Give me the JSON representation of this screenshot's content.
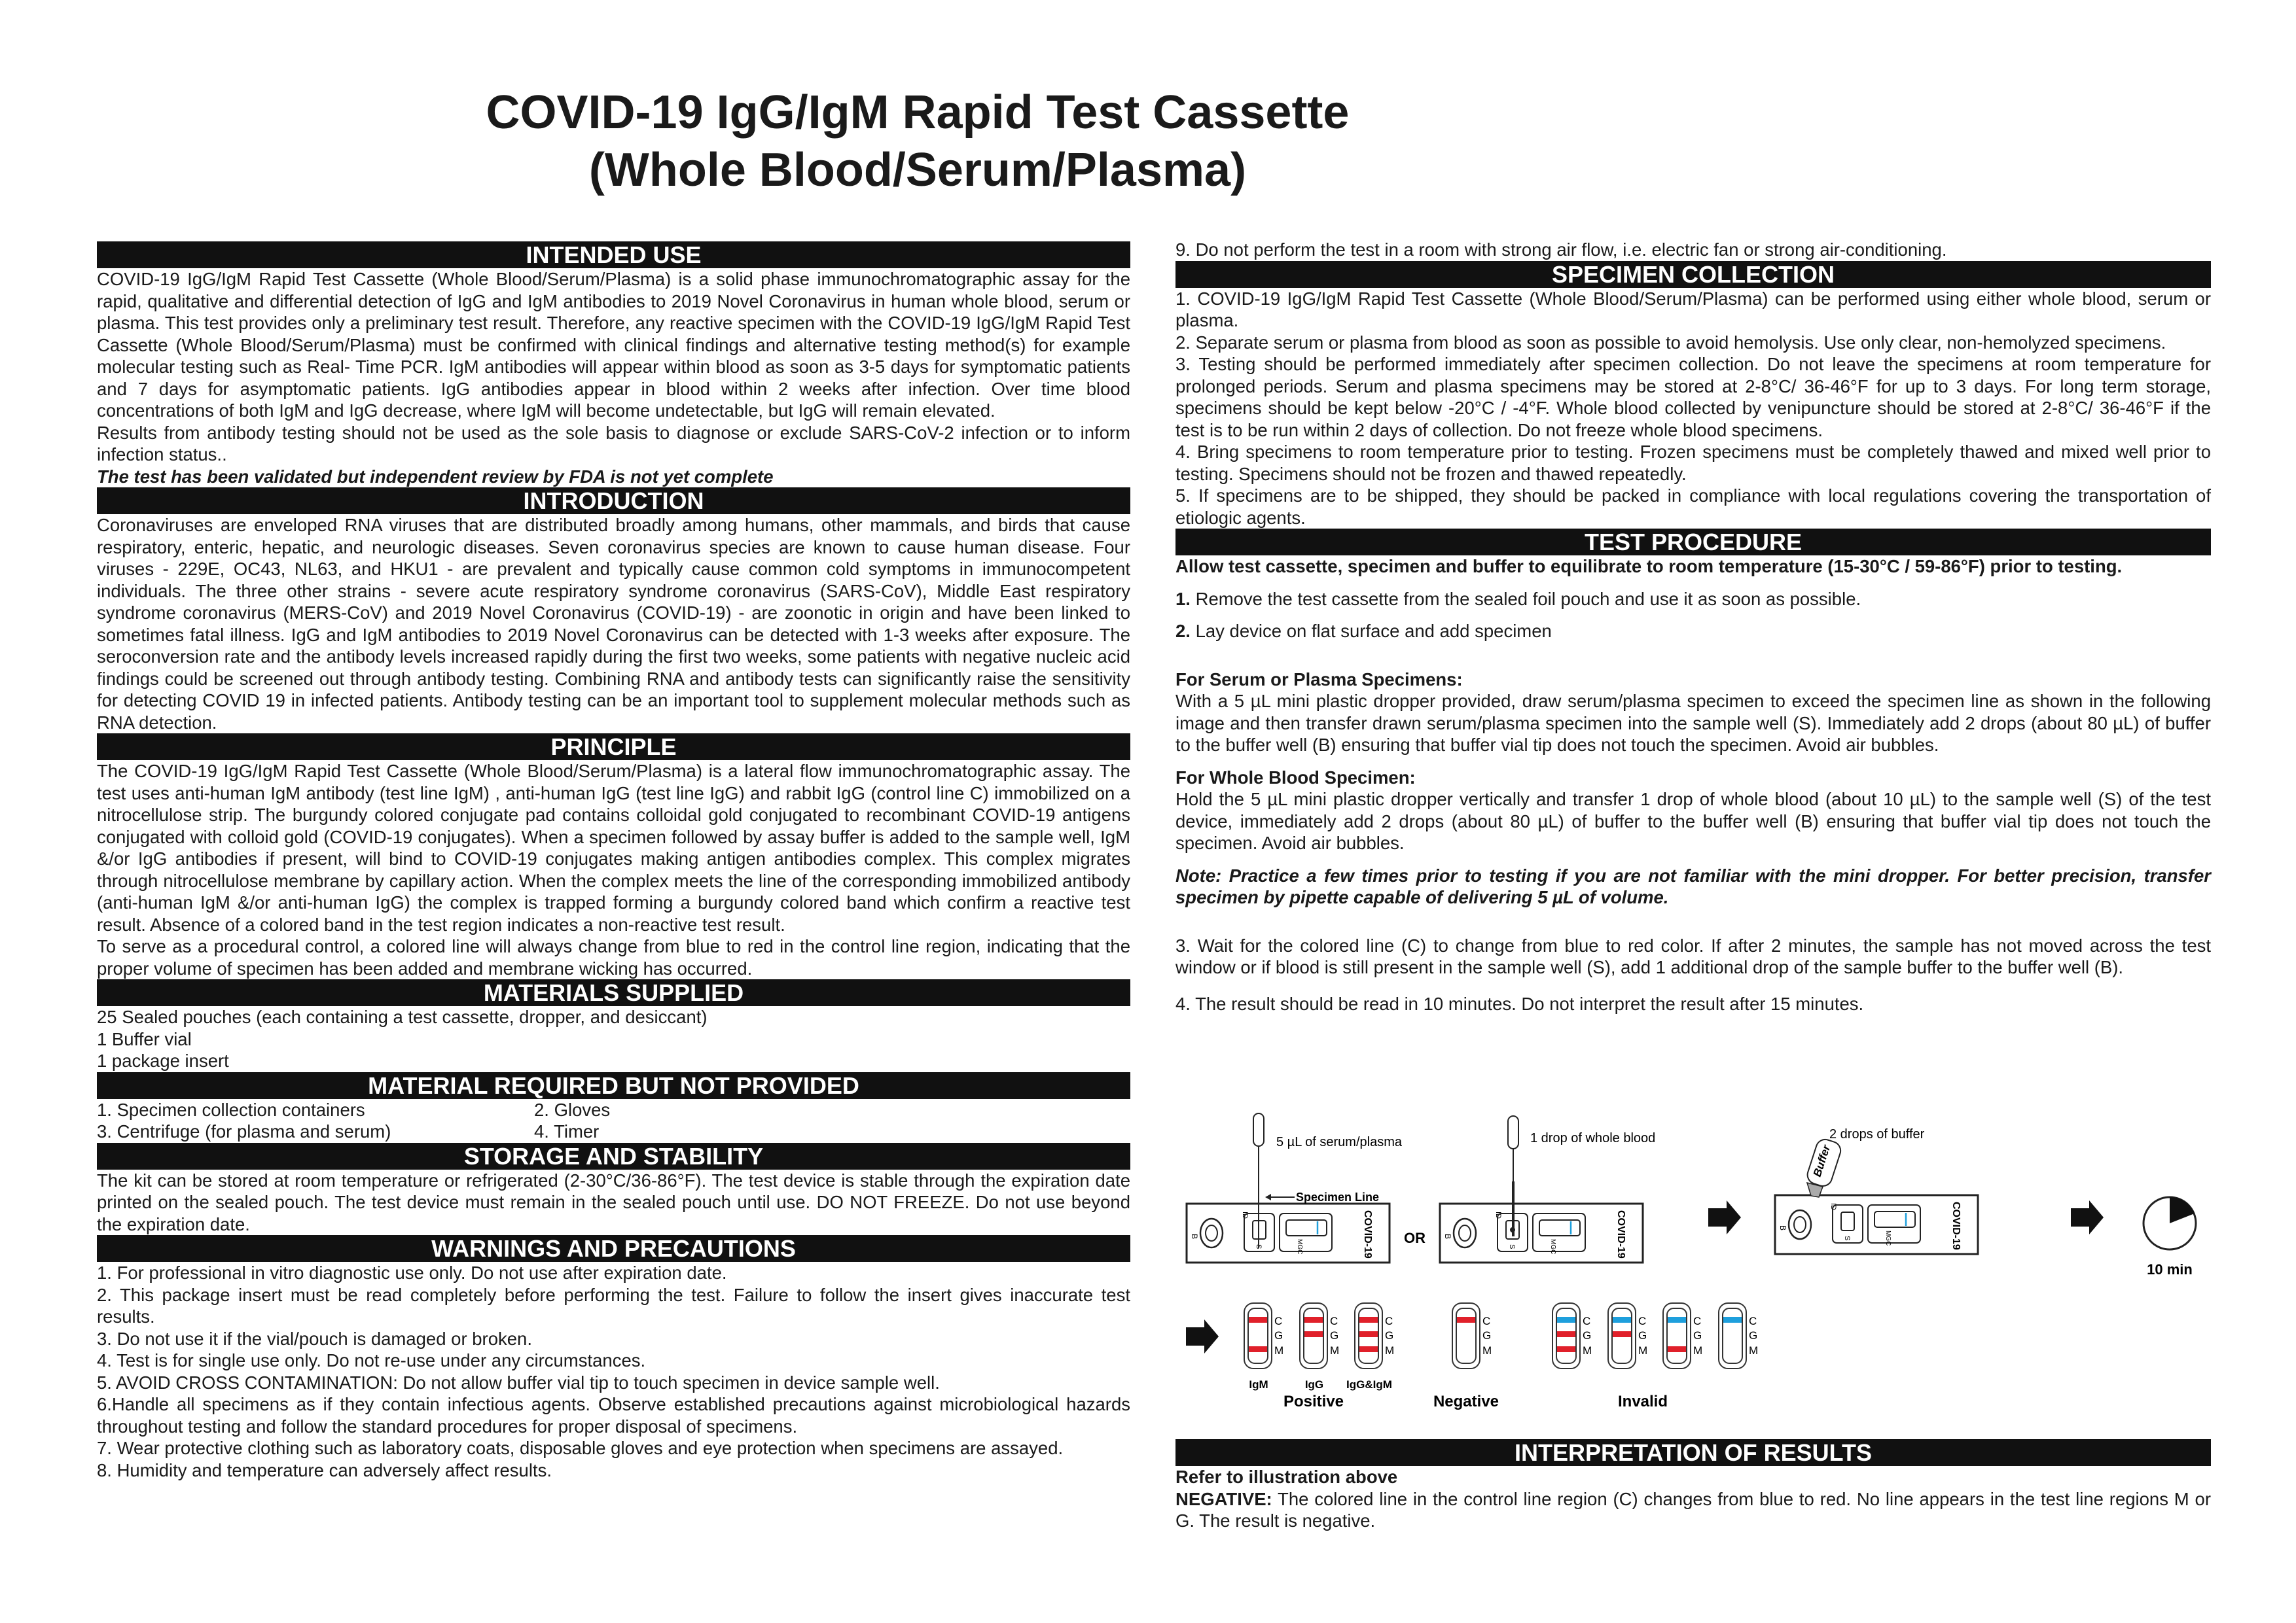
{
  "title": {
    "line1": "COVID-19 IgG/IgM Rapid Test Cassette",
    "line2": "(Whole Blood/Serum/Plasma)"
  },
  "intended_use": {
    "heading": "INTENDED USE",
    "p1": "COVID-19 IgG/IgM Rapid Test Cassette (Whole Blood/Serum/Plasma) is a solid phase immunochromatographic assay for the rapid, qualitative and differential detection of IgG and IgM antibodies to 2019 Novel Coronavirus in human whole blood, serum or plasma. This test provides only a preliminary test result. Therefore, any reactive specimen with the COVID-19 IgG/IgM Rapid Test Cassette (Whole Blood/Serum/Plasma) must be confirmed with clinical findings and alternative testing method(s) for example molecular testing such as Real- Time PCR. IgM antibodies will appear within blood as soon as 3-5 days for symptomatic patients and 7 days for asymptomatic patients. IgG antibodies appear in blood within 2 weeks after infection. Over time blood concentrations of both IgM and IgG decrease, where IgM will become undetectable, but IgG will remain elevated.",
    "p2": "Results from antibody testing should not be used as the sole basis to diagnose or exclude SARS-CoV-2 infection or to inform infection status..",
    "note": "The test has been validated but independent review by FDA is not yet complete"
  },
  "introduction": {
    "heading": "INTRODUCTION",
    "p1": "Coronaviruses are enveloped RNA viruses that are distributed broadly among humans, other mammals, and birds that cause respiratory, enteric, hepatic, and neurologic diseases. Seven coronavirus species are known to cause human disease. Four viruses - 229E, OC43, NL63, and HKU1 - are prevalent and typically cause common cold symptoms in immunocompetent individuals. The three other strains - severe acute respiratory syndrome coronavirus (SARS-CoV), Middle East respiratory syndrome coronavirus (MERS-CoV) and 2019 Novel Coronavirus (COVID-19) - are zoonotic in origin and have been linked to sometimes fatal illness. IgG and IgM antibodies to 2019 Novel Coronavirus can be detected with 1-3 weeks after exposure. The seroconversion rate and the antibody levels increased rapidly during the first two weeks, some patients with negative nucleic acid findings could be screened out through antibody testing. Combining RNA and antibody tests can significantly raise the sensitivity for detecting COVID 19 in infected patients. Antibody testing can be an important tool to supplement molecular methods such as RNA detection."
  },
  "principle": {
    "heading": "PRINCIPLE",
    "p1": "The COVID-19 IgG/IgM Rapid Test Cassette (Whole Blood/Serum/Plasma) is a lateral flow immunochromatographic assay. The test uses anti-human IgM antibody (test line IgM) , anti-human IgG (test line IgG) and rabbit IgG (control line C) immobilized on a nitrocellulose strip. The burgundy colored conjugate pad contains colloidal gold conjugated to recombinant COVID-19 antigens conjugated with colloid gold (COVID-19 conjugates). When a specimen followed by assay buffer is added to the sample well, IgM &/or IgG antibodies if present, will bind to COVID-19 conjugates making antigen antibodies complex. This complex migrates through nitrocellulose membrane by capillary action. When the complex meets the line of the corresponding immobilized antibody (anti-human IgM &/or anti-human IgG) the complex is trapped forming a burgundy colored band which confirm a reactive test result. Absence of a colored band in the test region indicates a non-reactive test result.",
    "p2": "To serve as a procedural control, a colored line will always change from blue to red in the control line region, indicating that the proper volume of specimen has been added and membrane wicking has occurred."
  },
  "materials_supplied": {
    "heading": "MATERIALS SUPPLIED",
    "items": [
      "25 Sealed pouches (each containing a test cassette, dropper, and desiccant)",
      "1 Buffer vial",
      "1 package insert"
    ]
  },
  "materials_required": {
    "heading": "MATERIAL REQUIRED BUT NOT PROVIDED",
    "items": [
      "1. Specimen collection containers",
      "2. Gloves",
      "3. Centrifuge (for plasma and serum)",
      "4. Timer"
    ]
  },
  "storage": {
    "heading": "STORAGE AND STABILITY",
    "p1": "The kit can be stored at room temperature or refrigerated (2-30°C/36-86°F). The test device is stable through the expiration date printed on the sealed pouch. The test device must remain in the sealed pouch until use. DO NOT FREEZE. Do not use beyond the expiration date."
  },
  "warnings": {
    "heading": "WARNINGS AND PRECAUTIONS",
    "items": [
      "1. For professional in vitro diagnostic use only. Do not use after expiration date.",
      "2. This package insert must be read completely before performing the test. Failure to follow the insert gives inaccurate test results.",
      "3. Do not use it if the vial/pouch is damaged or broken.",
      "4. Test is for single use only. Do not re-use under any circumstances.",
      "5. AVOID CROSS CONTAMINATION: Do not allow buffer vial tip to touch specimen in device sample well.",
      "6.Handle all specimens as if they contain infectious agents. Observe established precautions against microbiological hazards throughout testing and follow the standard procedures for proper disposal of specimens.",
      "7. Wear protective clothing such as laboratory coats, disposable gloves and eye protection when specimens are assayed.",
      "8. Humidity and temperature can adversely affect results.",
      "9. Do not perform the test in a room with strong air flow, i.e. electric fan or strong air-conditioning."
    ]
  },
  "specimen_collection": {
    "heading": "SPECIMEN COLLECTION",
    "items": [
      "1. COVID-19 IgG/IgM Rapid Test Cassette (Whole Blood/Serum/Plasma) can be performed using either whole blood, serum or plasma.",
      "2. Separate serum or plasma from blood as soon as possible to avoid hemolysis. Use only clear, non-hemolyzed specimens.",
      "3. Testing should be performed immediately after specimen collection. Do not leave the specimens at room temperature for prolonged periods. Serum and plasma specimens may be stored at 2-8°C/ 36-46°F for up to 3 days. For long term storage, specimens should be kept below -20°C / -4°F. Whole blood collected by venipuncture should be stored at 2-8°C/ 36-46°F if the test is to be run within 2 days of collection. Do not freeze whole blood specimens.",
      "4. Bring specimens to room temperature prior to testing. Frozen specimens must be completely thawed and mixed well prior to testing. Specimens should not be frozen and thawed repeatedly.",
      "5. If specimens are to be shipped, they should be packed in compliance with local regulations covering the transportation of etiologic agents."
    ]
  },
  "test_procedure": {
    "heading": "TEST PROCEDURE",
    "intro": "Allow test cassette, specimen and buffer to equilibrate to room temperature (15-30°C / 59-86°F) prior to testing.",
    "step1_num": "1.",
    "step1": "Remove the test cassette from the sealed foil pouch and use it as soon as possible.",
    "step2_num": "2.",
    "step2": "Lay device on flat surface and add specimen",
    "serum_heading": "For Serum or Plasma Specimens:",
    "serum_text": "With a 5 µL mini plastic dropper provided, draw serum/plasma specimen to exceed the specimen line as shown in the following image and then transfer drawn serum/plasma specimen into the sample well (S). Immediately add 2 drops (about 80 µL) of buffer to the buffer well (B) ensuring that buffer vial tip does not touch the specimen. Avoid air bubbles.",
    "blood_heading": "For Whole Blood Specimen:",
    "blood_text": "Hold the 5 µL mini plastic dropper vertically and transfer 1 drop of whole blood (about 10 µL) to the sample well (S) of the test device, immediately add 2 drops (about 80 µL) of buffer to the buffer well (B) ensuring that buffer vial tip does not touch the specimen. Avoid air bubbles.",
    "note": "Note: Practice a few times prior to testing if you are not familiar with the mini dropper. For better precision, transfer specimen by pipette capable of delivering 5 µL of volume.",
    "step3": "3.  Wait for the colored line (C) to change from blue to red color. If after 2 minutes, the sample has not moved across the test window or if blood is still present in the sample well (S), add 1 additional drop of the sample buffer to the buffer well (B).",
    "step4": "4.  The result should be read in 10 minutes. Do not interpret the result after 15 minutes."
  },
  "illustration": {
    "serum_label": "5 µL of serum/plasma",
    "blood_label": "1 drop of whole blood",
    "buffer_label": "2 drops of buffer",
    "specimen_line": "Specimen Line",
    "or": "OR",
    "cassette_brand": "COVID-19",
    "buffer_bottle": "Buffer",
    "timer": "10 min",
    "well_b": "B",
    "well_s": "S",
    "id": "ID",
    "letters": [
      "C",
      "G",
      "M"
    ],
    "colors": {
      "red": "#e0202a",
      "blue": "#1e9fdc"
    },
    "groups": [
      {
        "label": "Positive",
        "strips": [
          {
            "label": "IgM",
            "lines": [
              "red",
              "",
              "red"
            ]
          },
          {
            "label": "IgG",
            "lines": [
              "red",
              "red",
              ""
            ]
          },
          {
            "label": "IgG&IgM",
            "lines": [
              "red",
              "red",
              "red"
            ]
          }
        ]
      },
      {
        "label": "Negative",
        "strips": [
          {
            "label": "",
            "lines": [
              "red",
              "",
              ""
            ]
          }
        ]
      },
      {
        "label": "Invalid",
        "strips": [
          {
            "label": "",
            "lines": [
              "blue",
              "red",
              "red"
            ]
          },
          {
            "label": "",
            "lines": [
              "blue",
              "red",
              ""
            ]
          },
          {
            "label": "",
            "lines": [
              "blue",
              "",
              "red"
            ]
          },
          {
            "label": "",
            "lines": [
              "blue",
              "",
              ""
            ]
          }
        ]
      }
    ]
  },
  "interpretation": {
    "heading": "INTERPRETATION OF RESULTS",
    "refer": "Refer to illustration above",
    "neg_label": "NEGATIVE:",
    "neg_text": " The colored line in the control line region (C) changes from blue to red. No line appears in the test line regions M or G. The result is negative."
  }
}
